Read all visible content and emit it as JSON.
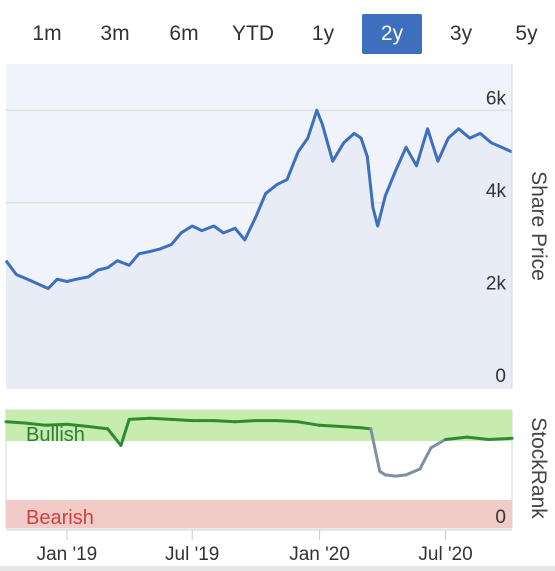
{
  "range_selector": {
    "buttons": [
      {
        "label": "1m"
      },
      {
        "label": "3m"
      },
      {
        "label": "6m"
      },
      {
        "label": "YTD"
      },
      {
        "label": "1y"
      },
      {
        "label": "2y"
      },
      {
        "label": "3y"
      },
      {
        "label": "5y"
      }
    ],
    "active": "2y"
  },
  "colors": {
    "accent": "#3c6fbe",
    "price_line": "#3c6fbe",
    "price_fill": "#f1f3fa",
    "bullish_zone": "#c6ecb0",
    "bearish_zone": "#f0cbc7",
    "rank_bullish_line": "#2e8b2e",
    "rank_neutral_line": "#7f8fa6",
    "bullish_text": "#2e7d32",
    "bearish_text": "#d04040"
  },
  "chart_data": [
    {
      "type": "area",
      "ylabel": "Share Price",
      "ylim": [
        0,
        7000
      ],
      "yticks": [
        {
          "value": 0,
          "label": "0"
        },
        {
          "value": 2000,
          "label": "2k"
        },
        {
          "value": 4000,
          "label": "4k"
        },
        {
          "value": 6000,
          "label": "6k"
        }
      ],
      "xlim": [
        "2018-10-05",
        "2020-10-05"
      ],
      "xticks": [
        {
          "date": "2019-01-01",
          "label": "Jan '19"
        },
        {
          "date": "2019-07-01",
          "label": "Jul '19"
        },
        {
          "date": "2020-01-01",
          "label": "Jan '20"
        },
        {
          "date": "2020-07-01",
          "label": "Jul '20"
        }
      ],
      "grid": true,
      "series": [
        {
          "x": [
            "2018-10-05",
            "2018-10-20",
            "2018-11-05",
            "2018-11-20",
            "2018-12-05",
            "2018-12-18",
            "2019-01-01",
            "2019-01-15",
            "2019-02-01",
            "2019-02-15",
            "2019-03-01",
            "2019-03-15",
            "2019-04-01",
            "2019-04-15",
            "2019-05-01",
            "2019-05-15",
            "2019-06-01",
            "2019-06-15",
            "2019-07-01",
            "2019-07-15",
            "2019-08-01",
            "2019-08-15",
            "2019-09-01",
            "2019-09-15",
            "2019-10-01",
            "2019-10-15",
            "2019-11-01",
            "2019-11-15",
            "2019-12-01",
            "2019-12-15",
            "2019-12-28",
            "2020-01-05",
            "2020-01-20",
            "2020-02-05",
            "2020-02-20",
            "2020-03-01",
            "2020-03-10",
            "2020-03-18",
            "2020-03-25",
            "2020-04-05",
            "2020-04-20",
            "2020-05-05",
            "2020-05-20",
            "2020-06-05",
            "2020-06-20",
            "2020-07-05",
            "2020-07-20",
            "2020-08-05",
            "2020-08-20",
            "2020-09-05",
            "2020-09-20",
            "2020-10-05"
          ],
          "values": [
            2750,
            2450,
            2350,
            2250,
            2150,
            2350,
            2300,
            2350,
            2400,
            2550,
            2600,
            2750,
            2650,
            2900,
            2950,
            3000,
            3100,
            3350,
            3500,
            3400,
            3500,
            3350,
            3450,
            3200,
            3700,
            4200,
            4400,
            4500,
            5100,
            5400,
            6000,
            5700,
            4900,
            5300,
            5500,
            5400,
            5000,
            3900,
            3500,
            4150,
            4700,
            5200,
            4800,
            5600,
            4900,
            5400,
            5600,
            5400,
            5500,
            5300,
            5200,
            5100
          ]
        }
      ]
    },
    {
      "type": "line",
      "ylabel": "StockRank",
      "ylim": [
        0,
        100
      ],
      "yticks": [
        {
          "value": 0,
          "label": "0"
        }
      ],
      "zones": [
        {
          "label": "Bullish",
          "from": 70,
          "to": 100
        },
        {
          "label": "Bearish",
          "from": 0,
          "to": 30
        }
      ],
      "series": [
        {
          "x": [
            "2018-10-05",
            "2018-11-01",
            "2018-12-01",
            "2019-01-01",
            "2019-02-01",
            "2019-03-01",
            "2019-03-20",
            "2019-04-01",
            "2019-05-01",
            "2019-06-01",
            "2019-07-01",
            "2019-08-01",
            "2019-09-01",
            "2019-10-01",
            "2019-11-01",
            "2019-12-01",
            "2020-01-01",
            "2020-02-01",
            "2020-03-01",
            "2020-03-15",
            "2020-03-28",
            "2020-04-05",
            "2020-04-20",
            "2020-05-05",
            "2020-05-25",
            "2020-06-10",
            "2020-07-01",
            "2020-08-01",
            "2020-09-01",
            "2020-10-05"
          ],
          "values": [
            90,
            89,
            87,
            88,
            86,
            84,
            70,
            92,
            93,
            92,
            91,
            91,
            90,
            91,
            91,
            90,
            87,
            86,
            85,
            84,
            48,
            45,
            44,
            45,
            50,
            68,
            75,
            77,
            75,
            76
          ]
        }
      ]
    }
  ]
}
